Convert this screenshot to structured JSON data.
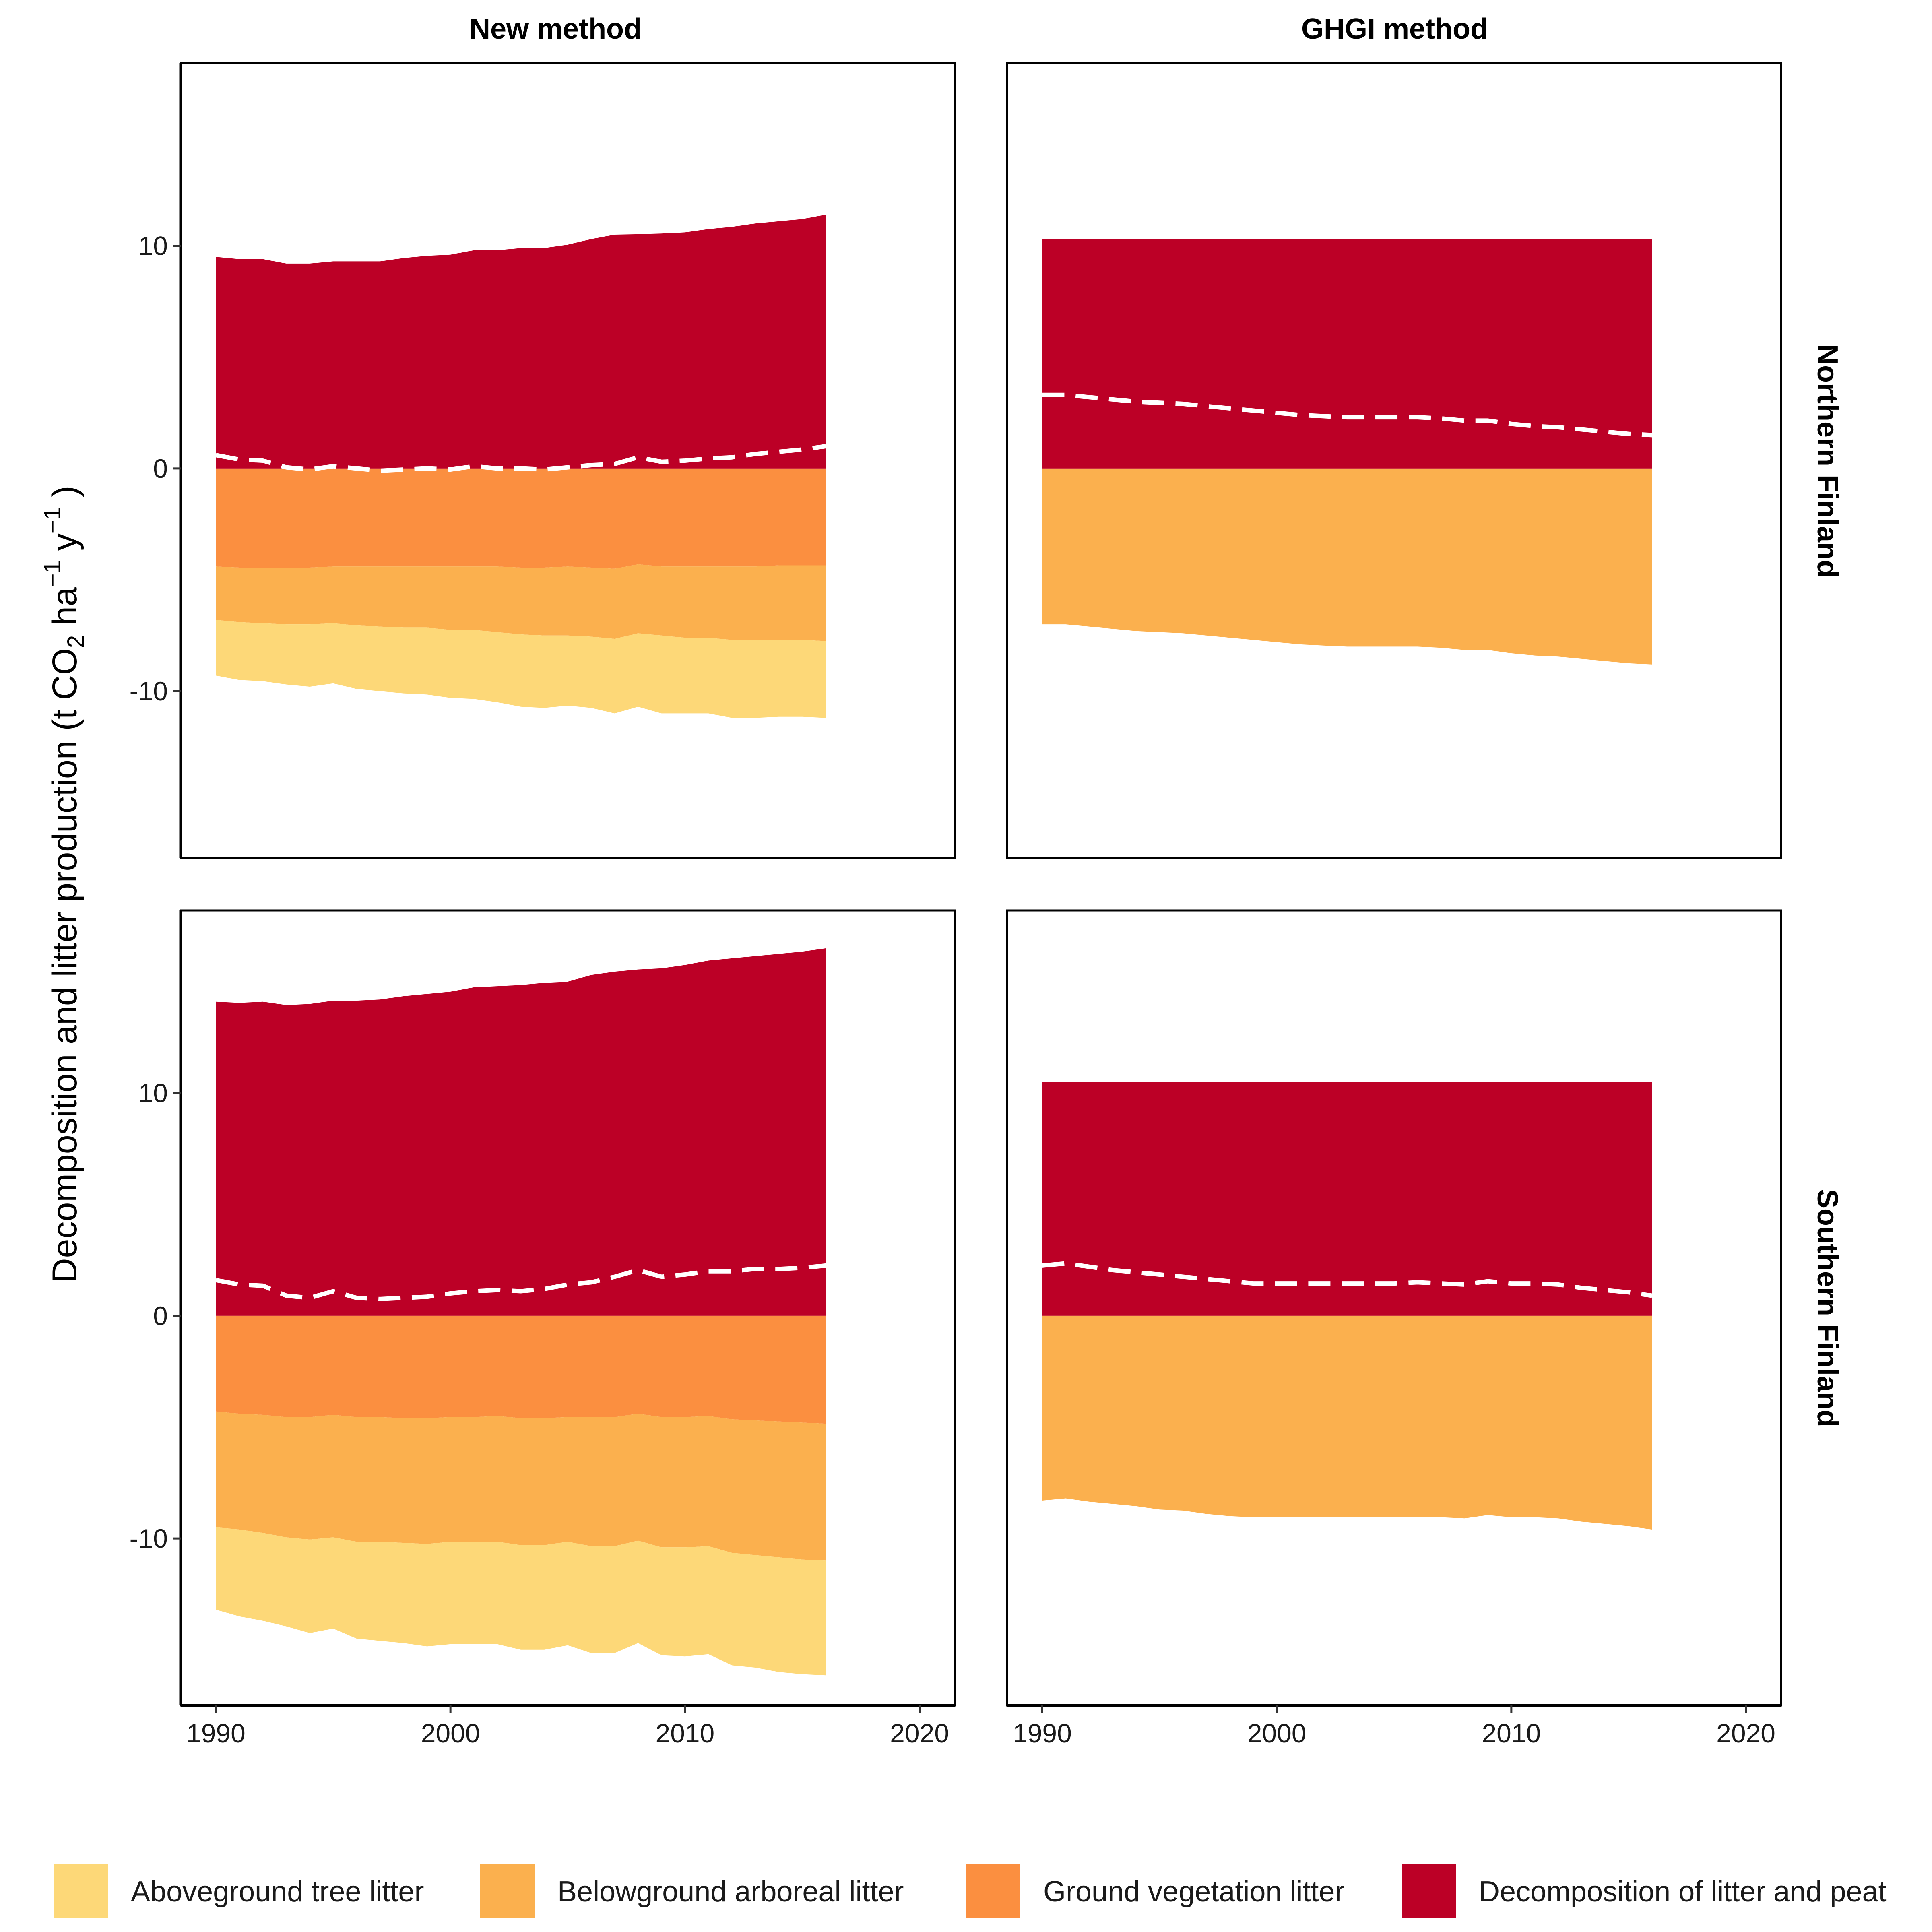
{
  "chart_data": {
    "type": "area",
    "layout": "facet-grid 2x2",
    "ylabel": {
      "prefix": "Decomposition and litter production (t  CO",
      "co2_subscript": "2",
      "ha": "  ha",
      "ha_exp": "−1",
      "y": "  y",
      "y_exp": "−1",
      "suffix": " )"
    },
    "xlabel": "",
    "x_ticks": [
      1990,
      2000,
      2010,
      2020
    ],
    "y_ticks": [
      -10,
      0,
      10
    ],
    "y_tick_labels": [
      "-10",
      "0",
      "10"
    ],
    "xlim": [
      1988.5,
      2021.5
    ],
    "ylim": [
      -17.5,
      18.2
    ],
    "grid": false,
    "legend_position": "bottom",
    "legend": [
      {
        "key": "above",
        "label": "Aboveground tree litter",
        "color": "#FDD878"
      },
      {
        "key": "below",
        "label": "Belowground arboreal litter",
        "color": "#FBB04E"
      },
      {
        "key": "ground",
        "label": "Ground vegetation litter",
        "color": "#FB8F40"
      },
      {
        "key": "decomp",
        "label": "Decomposition of litter and peat",
        "color": "#BC0026"
      }
    ],
    "net_line": {
      "style": "dashed",
      "color": "#ffffff"
    },
    "columns": [
      "New method",
      "GHGI method"
    ],
    "rows": [
      "Northern Finland",
      "Southern Finland"
    ],
    "panels": [
      {
        "row": "Northern Finland",
        "column": "New method",
        "x": [
          1990,
          1991,
          1992,
          1993,
          1994,
          1995,
          1996,
          1997,
          1998,
          1999,
          2000,
          2001,
          2002,
          2003,
          2004,
          2005,
          2006,
          2007,
          2008,
          2009,
          2010,
          2011,
          2012,
          2013,
          2014,
          2015,
          2016
        ],
        "series": [
          {
            "key": "decomp",
            "values": [
              9.5,
              9.4,
              9.4,
              9.2,
              9.2,
              9.3,
              9.3,
              9.3,
              9.45,
              9.55,
              9.6,
              9.8,
              9.8,
              9.9,
              9.9,
              10.05,
              10.3,
              10.5,
              10.52,
              10.55,
              10.6,
              10.75,
              10.85,
              11.0,
              11.1,
              11.2,
              11.4
            ]
          },
          {
            "key": "ground",
            "values": [
              -4.4,
              -4.45,
              -4.45,
              -4.45,
              -4.45,
              -4.4,
              -4.4,
              -4.4,
              -4.4,
              -4.4,
              -4.4,
              -4.4,
              -4.4,
              -4.45,
              -4.45,
              -4.4,
              -4.45,
              -4.5,
              -4.3,
              -4.4,
              -4.4,
              -4.4,
              -4.4,
              -4.4,
              -4.35,
              -4.35,
              -4.35
            ]
          },
          {
            "key": "below",
            "values": [
              -2.4,
              -2.45,
              -2.5,
              -2.55,
              -2.55,
              -2.55,
              -2.65,
              -2.7,
              -2.75,
              -2.75,
              -2.85,
              -2.85,
              -2.95,
              -3.0,
              -3.05,
              -3.1,
              -3.1,
              -3.15,
              -3.1,
              -3.1,
              -3.2,
              -3.2,
              -3.3,
              -3.3,
              -3.35,
              -3.35,
              -3.4
            ]
          },
          {
            "key": "above",
            "values": [
              -2.5,
              -2.6,
              -2.6,
              -2.7,
              -2.8,
              -2.7,
              -2.85,
              -2.9,
              -2.95,
              -3.0,
              -3.05,
              -3.1,
              -3.15,
              -3.25,
              -3.25,
              -3.15,
              -3.2,
              -3.35,
              -3.3,
              -3.5,
              -3.4,
              -3.4,
              -3.5,
              -3.5,
              -3.45,
              -3.45,
              -3.45
            ]
          }
        ],
        "net": [
          0.6,
          0.4,
          0.35,
          0.05,
          -0.05,
          0.1,
          0.0,
          -0.1,
          -0.05,
          0.0,
          -0.05,
          0.1,
          0.0,
          0.0,
          -0.05,
          0.05,
          0.15,
          0.2,
          0.5,
          0.3,
          0.35,
          0.45,
          0.5,
          0.65,
          0.75,
          0.85,
          1.0
        ]
      },
      {
        "row": "Northern Finland",
        "column": "GHGI method",
        "x": [
          1990,
          1991,
          1992,
          1993,
          1994,
          1995,
          1996,
          1997,
          1998,
          1999,
          2000,
          2001,
          2002,
          2003,
          2004,
          2005,
          2006,
          2007,
          2008,
          2009,
          2010,
          2011,
          2012,
          2013,
          2014,
          2015,
          2016
        ],
        "series": [
          {
            "key": "decomp",
            "values": [
              10.3,
              10.3,
              10.3,
              10.3,
              10.3,
              10.3,
              10.3,
              10.3,
              10.3,
              10.3,
              10.3,
              10.3,
              10.3,
              10.3,
              10.3,
              10.3,
              10.3,
              10.3,
              10.3,
              10.3,
              10.3,
              10.3,
              10.3,
              10.3,
              10.3,
              10.3,
              10.3
            ]
          },
          {
            "key": "below",
            "values": [
              -7.0,
              -7.0,
              -7.1,
              -7.2,
              -7.3,
              -7.35,
              -7.4,
              -7.5,
              -7.6,
              -7.7,
              -7.8,
              -7.9,
              -7.95,
              -8.0,
              -8.0,
              -8.0,
              -8.0,
              -8.05,
              -8.15,
              -8.15,
              -8.3,
              -8.4,
              -8.45,
              -8.55,
              -8.65,
              -8.75,
              -8.8
            ]
          }
        ],
        "net": [
          3.3,
          3.3,
          3.2,
          3.1,
          3.0,
          2.95,
          2.9,
          2.8,
          2.7,
          2.6,
          2.5,
          2.4,
          2.35,
          2.3,
          2.3,
          2.3,
          2.3,
          2.25,
          2.15,
          2.15,
          2.0,
          1.9,
          1.85,
          1.75,
          1.65,
          1.55,
          1.5
        ]
      },
      {
        "row": "Southern Finland",
        "column": "New method",
        "x": [
          1990,
          1991,
          1992,
          1993,
          1994,
          1995,
          1996,
          1997,
          1998,
          1999,
          2000,
          2001,
          2002,
          2003,
          2004,
          2005,
          2006,
          2007,
          2008,
          2009,
          2010,
          2011,
          2012,
          2013,
          2014,
          2015,
          2016
        ],
        "series": [
          {
            "key": "decomp",
            "values": [
              14.1,
              14.05,
              14.1,
              13.95,
              14.0,
              14.15,
              14.15,
              14.2,
              14.35,
              14.45,
              14.55,
              14.75,
              14.8,
              14.85,
              14.95,
              15.0,
              15.3,
              15.45,
              15.55,
              15.6,
              15.75,
              15.95,
              16.05,
              16.15,
              16.25,
              16.35,
              16.5
            ]
          },
          {
            "key": "ground",
            "values": [
              -4.3,
              -4.4,
              -4.45,
              -4.55,
              -4.55,
              -4.45,
              -4.55,
              -4.55,
              -4.6,
              -4.6,
              -4.55,
              -4.55,
              -4.5,
              -4.6,
              -4.6,
              -4.55,
              -4.55,
              -4.55,
              -4.4,
              -4.55,
              -4.55,
              -4.5,
              -4.65,
              -4.7,
              -4.75,
              -4.8,
              -4.85
            ]
          },
          {
            "key": "below",
            "values": [
              -5.2,
              -5.2,
              -5.3,
              -5.4,
              -5.5,
              -5.5,
              -5.6,
              -5.6,
              -5.6,
              -5.65,
              -5.6,
              -5.6,
              -5.65,
              -5.7,
              -5.7,
              -5.6,
              -5.8,
              -5.8,
              -5.7,
              -5.85,
              -5.85,
              -5.85,
              -6.0,
              -6.05,
              -6.1,
              -6.15,
              -6.15
            ]
          },
          {
            "key": "above",
            "values": [
              -3.7,
              -3.9,
              -3.95,
              -4.0,
              -4.2,
              -4.1,
              -4.35,
              -4.45,
              -4.5,
              -4.6,
              -4.6,
              -4.6,
              -4.6,
              -4.7,
              -4.7,
              -4.65,
              -4.8,
              -4.8,
              -4.6,
              -4.85,
              -4.9,
              -4.85,
              -5.05,
              -5.05,
              -5.15,
              -5.15,
              -5.15
            ]
          }
        ],
        "net": [
          1.6,
          1.4,
          1.35,
          0.9,
          0.8,
          1.1,
          0.8,
          0.75,
          0.8,
          0.85,
          1.0,
          1.1,
          1.15,
          1.1,
          1.2,
          1.4,
          1.5,
          1.75,
          2.05,
          1.75,
          1.85,
          2.0,
          2.0,
          2.1,
          2.1,
          2.15,
          2.25
        ]
      },
      {
        "row": "Southern Finland",
        "column": "GHGI method",
        "x": [
          1990,
          1991,
          1992,
          1993,
          1994,
          1995,
          1996,
          1997,
          1998,
          1999,
          2000,
          2001,
          2002,
          2003,
          2004,
          2005,
          2006,
          2007,
          2008,
          2009,
          2010,
          2011,
          2012,
          2013,
          2014,
          2015,
          2016
        ],
        "series": [
          {
            "key": "decomp",
            "values": [
              10.5,
              10.5,
              10.5,
              10.5,
              10.5,
              10.5,
              10.5,
              10.5,
              10.5,
              10.5,
              10.5,
              10.5,
              10.5,
              10.5,
              10.5,
              10.5,
              10.5,
              10.5,
              10.5,
              10.5,
              10.5,
              10.5,
              10.5,
              10.5,
              10.5,
              10.5,
              10.5
            ]
          },
          {
            "key": "below",
            "values": [
              -8.3,
              -8.2,
              -8.35,
              -8.45,
              -8.55,
              -8.7,
              -8.75,
              -8.9,
              -9.0,
              -9.05,
              -9.05,
              -9.05,
              -9.05,
              -9.05,
              -9.05,
              -9.05,
              -9.05,
              -9.05,
              -9.1,
              -8.95,
              -9.05,
              -9.05,
              -9.1,
              -9.25,
              -9.35,
              -9.45,
              -9.6
            ]
          }
        ],
        "net": [
          2.25,
          2.35,
          2.2,
          2.05,
          1.95,
          1.85,
          1.75,
          1.65,
          1.55,
          1.45,
          1.45,
          1.45,
          1.45,
          1.45,
          1.45,
          1.45,
          1.5,
          1.45,
          1.4,
          1.55,
          1.45,
          1.45,
          1.4,
          1.25,
          1.15,
          1.05,
          0.9
        ]
      }
    ]
  }
}
